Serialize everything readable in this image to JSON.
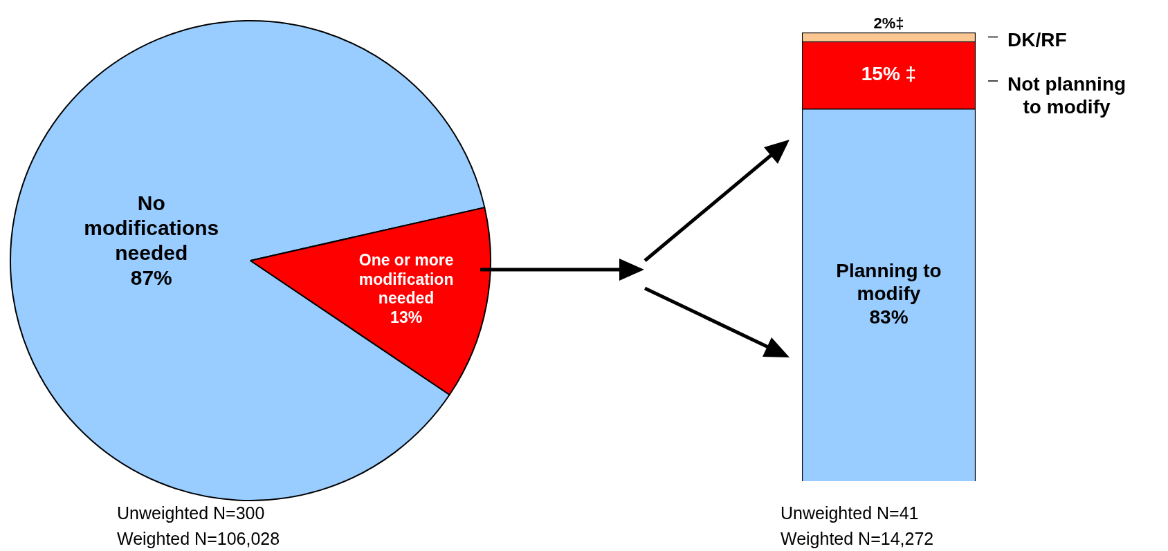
{
  "chart_data": [
    {
      "type": "pie",
      "categories": [
        "No modifications needed",
        "One or more modification needed"
      ],
      "values": [
        87,
        13
      ],
      "colors": [
        "#99ccff",
        "#ff0000"
      ],
      "value_labels": [
        "87%",
        "13%"
      ],
      "legend": false,
      "annotations": [
        "Unweighted N=300",
        "Weighted N=106,028"
      ]
    },
    {
      "type": "bar",
      "stacked": true,
      "categories": [
        null
      ],
      "ylim": [
        0,
        100
      ],
      "tick_labels": false,
      "legend": false,
      "series": [
        {
          "name": "Planning to modify",
          "color": "#99ccff",
          "values": [
            83
          ],
          "value_labels": [
            "83%"
          ]
        },
        {
          "name": "Not planning to modify",
          "color": "#ff0000",
          "values": [
            15
          ],
          "value_labels": [
            "15% ‡"
          ]
        },
        {
          "name": "DK/RF",
          "color": "#fac792",
          "values": [
            2
          ],
          "value_labels": [
            "2%‡"
          ]
        }
      ],
      "annotations": [
        "Unweighted N=41",
        "Weighted N=14,272"
      ]
    }
  ]
}
